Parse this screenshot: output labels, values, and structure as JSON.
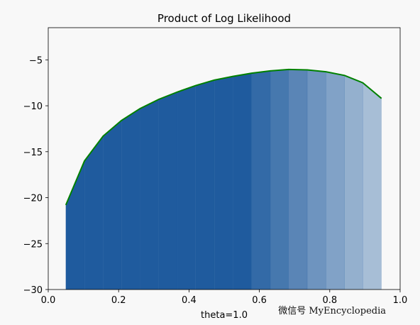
{
  "chart_data": {
    "type": "area",
    "title": "Product of Log Likelihood",
    "xlabel": "theta=1.0",
    "ylabel": "",
    "xlim": [
      0.0,
      1.0
    ],
    "ylim": [
      -30,
      -1.5
    ],
    "grid": false,
    "xticks": [
      0.0,
      0.2,
      0.4,
      0.6,
      0.8,
      1.0
    ],
    "xtick_labels": [
      "0.0",
      "0.2",
      "0.4",
      "0.6",
      "0.8",
      "1.0"
    ],
    "yticks": [
      -30,
      -25,
      -20,
      -15,
      -10,
      -5
    ],
    "ytick_labels": [
      "−30",
      "−25",
      "−20",
      "−15",
      "−10",
      "−5"
    ],
    "series": [
      {
        "x": [
          0.05,
          0.103,
          0.156,
          0.208,
          0.261,
          0.314,
          0.367,
          0.419,
          0.472,
          0.525,
          0.578,
          0.631,
          0.683,
          0.736,
          0.789,
          0.842,
          0.894,
          0.947
        ],
        "y": [
          -20.8,
          -16.0,
          -13.3,
          -11.6,
          -10.3,
          -9.3,
          -8.5,
          -7.8,
          -7.2,
          -6.8,
          -6.45,
          -6.2,
          -6.05,
          -6.1,
          -6.3,
          -6.7,
          -7.5,
          -9.2
        ]
      }
    ],
    "colors": {
      "line": "#008000",
      "fill": "#1f5b9e",
      "fill_light": "#9fbad6"
    }
  },
  "watermark": "微信号 MyEncyclopedia"
}
